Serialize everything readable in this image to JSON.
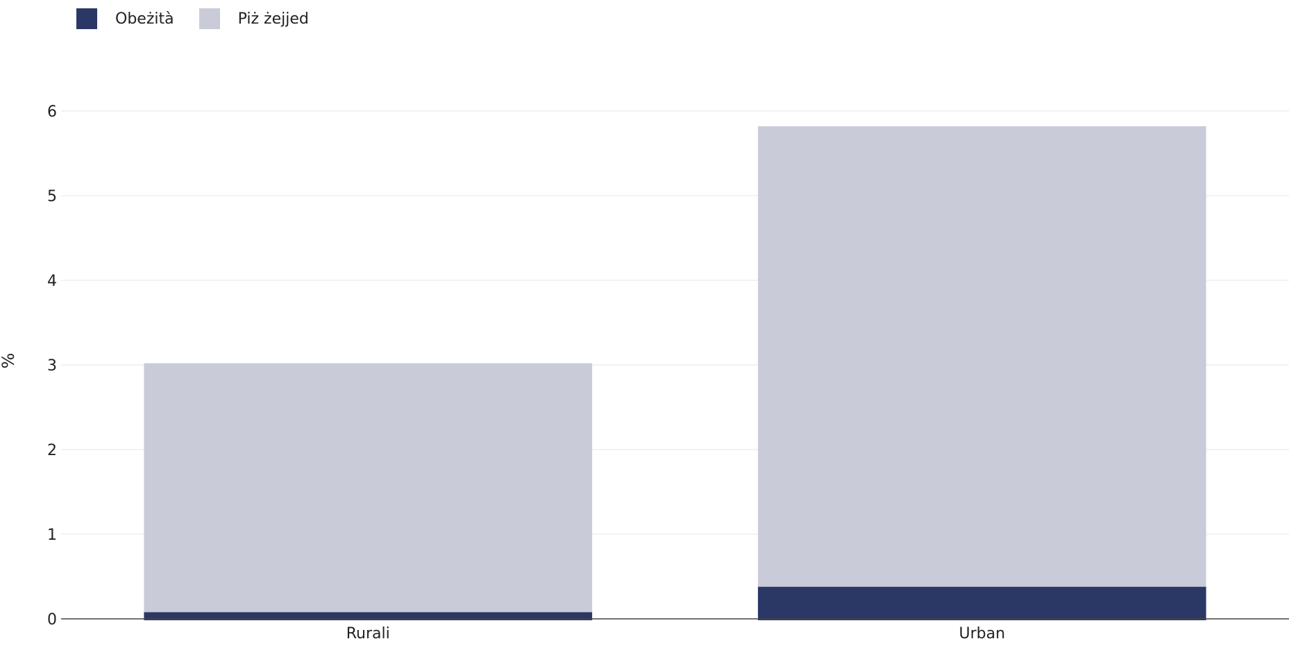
{
  "chart_data": {
    "type": "bar",
    "stacked": true,
    "categories": [
      "Rurali",
      "Urban"
    ],
    "series": [
      {
        "name": "Obeżità",
        "values": [
          0.08,
          0.38
        ],
        "color": "#2b3866"
      },
      {
        "name": "Piż żejjed",
        "values": [
          2.94,
          5.44
        ],
        "color": "#c9ccd8"
      }
    ],
    "ylabel": "%",
    "xlabel": "",
    "ylim": [
      0,
      6
    ],
    "yticks": [
      0,
      1,
      2,
      3,
      4,
      5,
      6
    ],
    "grid": true,
    "legend_position": "top-left"
  }
}
